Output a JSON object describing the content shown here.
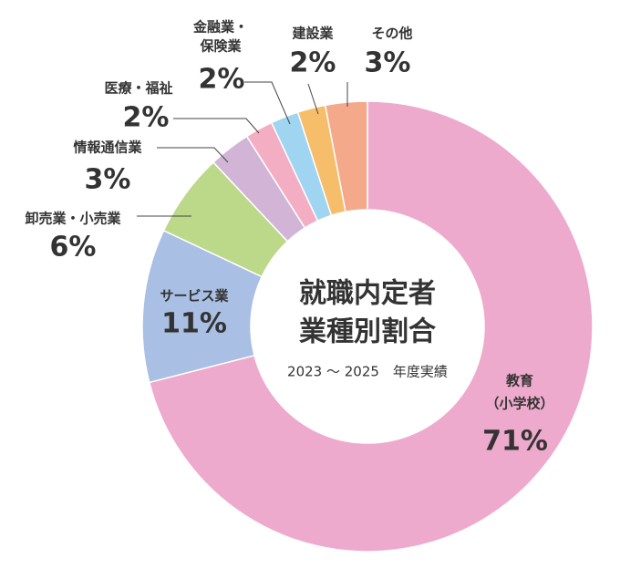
{
  "chart_data": {
    "type": "donut",
    "title": [
      "就職内定者",
      "業種別割合"
    ],
    "subtitle": "2023 ～ 2025　年度実績",
    "categories": [
      [
        "教育",
        "（小学校）"
      ],
      [
        "サービス業"
      ],
      [
        "卸売業・小売業"
      ],
      [
        "情報通信業"
      ],
      [
        "医療・福祉"
      ],
      [
        "金融業・",
        "保険業"
      ],
      [
        "建設業"
      ],
      [
        "その他"
      ]
    ],
    "values": [
      71,
      11,
      6,
      3,
      2,
      2,
      2,
      3
    ],
    "value_labels": [
      "71%",
      "11%",
      "6%",
      "3%",
      "2%",
      "2%",
      "2%",
      "3%"
    ],
    "colors": [
      "#eeaacc",
      "#a9bfe3",
      "#bcd98a",
      "#d2b4d6",
      "#f4aec4",
      "#9fd5f0",
      "#f6bd6a",
      "#f4a98a"
    ]
  }
}
